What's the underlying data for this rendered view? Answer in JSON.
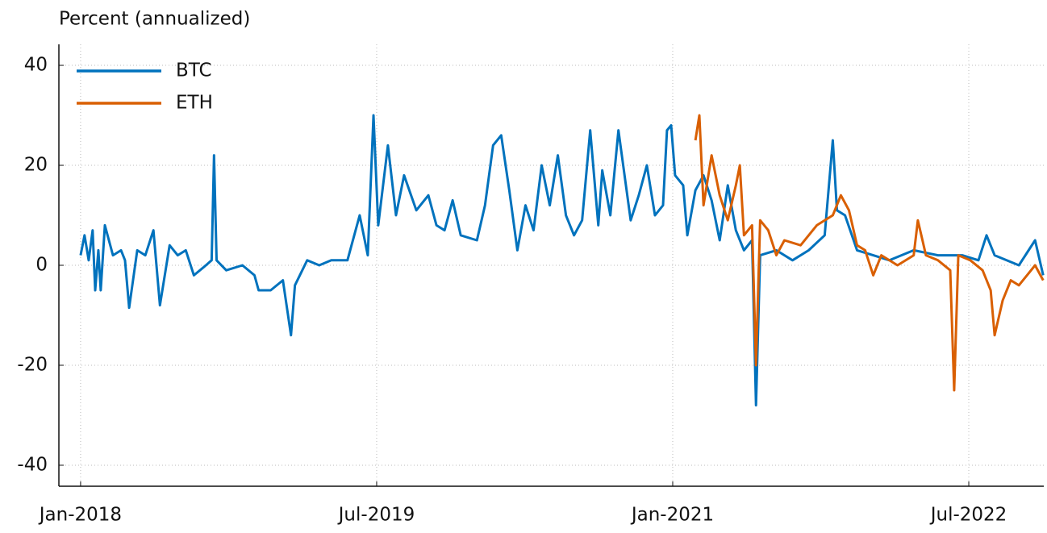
{
  "chart_data": {
    "type": "line",
    "title": "Percent (annualized)",
    "xlim": [
      2017.89,
      2022.88
    ],
    "ylim": [
      -44.2,
      44.2
    ],
    "xticks": [
      {
        "value": 2018,
        "label": "Jan-2018"
      },
      {
        "value": 2019.5,
        "label": "Jul-2019"
      },
      {
        "value": 2021,
        "label": "Jan-2021"
      },
      {
        "value": 2022.5,
        "label": "Jul-2022"
      }
    ],
    "yticks": [
      -40,
      -20,
      0,
      20,
      40
    ],
    "grid": true,
    "legend": "upper-left",
    "series": [
      {
        "name": "BTC",
        "color": "#0072bd",
        "x": [
          2018.0,
          2018.02,
          2018.041,
          2018.061,
          2018.074,
          2018.09,
          2018.102,
          2018.123,
          2018.164,
          2018.205,
          2018.225,
          2018.246,
          2018.287,
          2018.328,
          2018.369,
          2018.402,
          2018.451,
          2018.492,
          2018.533,
          2018.574,
          2018.635,
          2018.664,
          2018.676,
          2018.689,
          2018.738,
          2018.82,
          2018.881,
          2018.902,
          2018.963,
          2019.025,
          2019.066,
          2019.086,
          2019.148,
          2019.209,
          2019.27,
          2019.352,
          2019.414,
          2019.455,
          2019.484,
          2019.508,
          2019.557,
          2019.598,
          2019.639,
          2019.701,
          2019.762,
          2019.803,
          2019.844,
          2019.885,
          2019.926,
          2020.008,
          2020.049,
          2020.09,
          2020.131,
          2020.172,
          2020.213,
          2020.254,
          2020.295,
          2020.336,
          2020.377,
          2020.418,
          2020.459,
          2020.5,
          2020.541,
          2020.582,
          2020.623,
          2020.643,
          2020.684,
          2020.725,
          2020.787,
          2020.828,
          2020.869,
          2020.91,
          2020.951,
          2020.971,
          2020.992,
          2021.012,
          2021.053,
          2021.074,
          2021.115,
          2021.156,
          2021.197,
          2021.238,
          2021.279,
          2021.32,
          2021.361,
          2021.402,
          2021.422,
          2021.443,
          2021.525,
          2021.607,
          2021.689,
          2021.77,
          2021.811,
          2021.832,
          2021.873,
          2021.934,
          2022.016,
          2022.098,
          2022.221,
          2022.344,
          2022.467,
          2022.549,
          2022.59,
          2022.631,
          2022.754,
          2022.836,
          2022.877
        ],
        "values": [
          2,
          6,
          1,
          7,
          -5,
          3,
          -5,
          8,
          2,
          3,
          1,
          -8.5,
          3,
          2,
          7,
          -8,
          4,
          2,
          3,
          -2,
          0,
          1,
          22,
          1,
          -1,
          0,
          -2,
          -5,
          -5,
          -3,
          -14,
          -4,
          1,
          0,
          1,
          1,
          10,
          2,
          30,
          8,
          24,
          10,
          18,
          11,
          14,
          8,
          7,
          13,
          6,
          5,
          12,
          24,
          26,
          15,
          3,
          12,
          7,
          20,
          12,
          22,
          10,
          6,
          9,
          27,
          8,
          19,
          10,
          27,
          9,
          14,
          20,
          10,
          12,
          27,
          28,
          18,
          16,
          6,
          15,
          18,
          13,
          5,
          16,
          7,
          3,
          5,
          -28,
          2,
          3,
          1,
          3,
          6,
          25,
          11,
          10,
          3,
          2,
          1,
          3,
          2,
          2,
          1,
          6,
          2,
          0,
          5,
          -2
        ]
      },
      {
        "name": "ETH",
        "color": "#d95f02",
        "x": [
          2021.115,
          2021.135,
          2021.156,
          2021.197,
          2021.238,
          2021.279,
          2021.32,
          2021.34,
          2021.361,
          2021.402,
          2021.422,
          2021.443,
          2021.484,
          2021.525,
          2021.566,
          2021.648,
          2021.73,
          2021.811,
          2021.852,
          2021.893,
          2021.934,
          2021.975,
          2022.016,
          2022.057,
          2022.139,
          2022.221,
          2022.242,
          2022.283,
          2022.344,
          2022.406,
          2022.426,
          2022.447,
          2022.508,
          2022.57,
          2022.611,
          2022.631,
          2022.672,
          2022.713,
          2022.754,
          2022.795,
          2022.836,
          2022.877
        ],
        "values": [
          25,
          30,
          12,
          22,
          14,
          9,
          16,
          20,
          6,
          8,
          -20,
          9,
          7,
          2,
          5,
          4,
          8,
          10,
          14,
          11,
          4,
          3,
          -2,
          2,
          0,
          2,
          9,
          2,
          1,
          -1,
          -25,
          2,
          1,
          -1,
          -5,
          -14,
          -7,
          -3,
          -4,
          -2,
          0,
          -3
        ]
      }
    ]
  }
}
